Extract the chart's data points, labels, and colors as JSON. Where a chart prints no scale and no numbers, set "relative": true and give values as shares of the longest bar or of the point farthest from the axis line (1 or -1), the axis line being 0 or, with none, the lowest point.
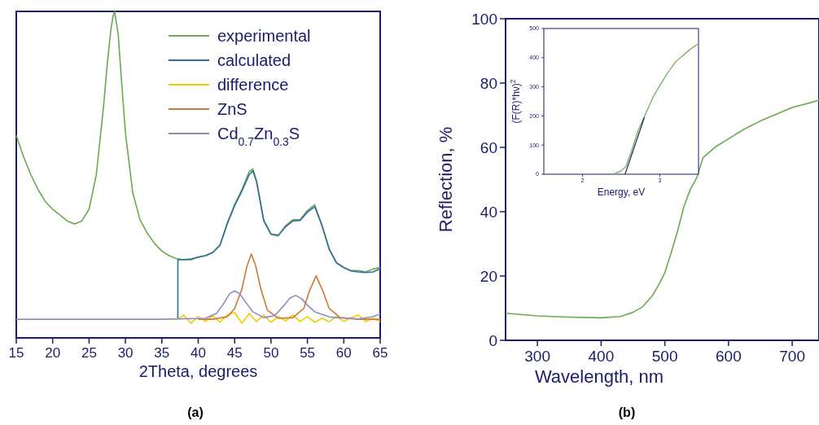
{
  "chart_data": [
    {
      "type": "line",
      "xlabel": "2Theta, degrees",
      "annotations": [
        "(a)"
      ],
      "relative": true,
      "xlim": [
        15,
        65
      ],
      "xticks": [
        15,
        20,
        25,
        30,
        35,
        40,
        45,
        50,
        55,
        60,
        65
      ],
      "legend": "top right",
      "grid": false,
      "series": [
        {
          "name": "experimental",
          "color": "#6aaa50",
          "x": [
            15,
            16,
            17,
            18,
            19,
            20,
            21,
            22,
            23,
            24,
            25,
            26,
            27,
            27.5,
            28,
            28.3,
            28.5,
            29,
            29.5,
            30,
            31,
            32,
            33,
            34,
            35,
            36,
            37,
            38,
            39,
            40,
            41,
            42,
            43,
            44,
            45,
            46,
            47,
            47.5,
            48,
            49,
            50,
            51,
            52,
            53,
            54,
            55,
            56,
            57,
            58,
            59,
            60,
            61,
            62,
            63,
            64,
            65
          ],
          "values": [
            0.62,
            0.555,
            0.5,
            0.454,
            0.417,
            0.394,
            0.376,
            0.358,
            0.349,
            0.358,
            0.394,
            0.5,
            0.711,
            0.839,
            0.945,
            0.986,
            1.0,
            0.931,
            0.775,
            0.628,
            0.445,
            0.362,
            0.321,
            0.289,
            0.266,
            0.252,
            0.243,
            0.239,
            0.239,
            0.248,
            0.252,
            0.261,
            0.284,
            0.353,
            0.408,
            0.454,
            0.509,
            0.518,
            0.482,
            0.358,
            0.317,
            0.312,
            0.344,
            0.362,
            0.362,
            0.39,
            0.408,
            0.344,
            0.271,
            0.229,
            0.216,
            0.206,
            0.206,
            0.202,
            0.211,
            0.216
          ]
        },
        {
          "name": "calculated",
          "color": "#2f6f9f",
          "x": [
            37.2,
            37.2,
            38,
            39,
            40,
            41,
            42,
            43,
            44,
            45,
            46,
            47,
            47.5,
            48,
            49,
            50,
            51,
            52,
            53,
            54,
            55,
            56,
            57,
            58,
            59,
            60,
            61,
            62,
            63,
            64,
            65
          ],
          "values": [
            0.057,
            0.239,
            0.24,
            0.242,
            0.247,
            0.252,
            0.262,
            0.285,
            0.35,
            0.405,
            0.45,
            0.5,
            0.512,
            0.48,
            0.36,
            0.318,
            0.315,
            0.34,
            0.358,
            0.36,
            0.385,
            0.402,
            0.345,
            0.272,
            0.23,
            0.215,
            0.205,
            0.202,
            0.2,
            0.202,
            0.212
          ]
        },
        {
          "name": "difference",
          "color": "#f5c800",
          "x": [
            37.2,
            38,
            39,
            40,
            41,
            42,
            43,
            44,
            45,
            46,
            47,
            48,
            49,
            50,
            51,
            52,
            53,
            54,
            55,
            56,
            57,
            58,
            59,
            60,
            61,
            62,
            63,
            64,
            65
          ],
          "values": [
            0.057,
            0.07,
            0.045,
            0.065,
            0.05,
            0.068,
            0.048,
            0.07,
            0.078,
            0.045,
            0.075,
            0.05,
            0.07,
            0.048,
            0.065,
            0.052,
            0.07,
            0.05,
            0.065,
            0.048,
            0.06,
            0.05,
            0.065,
            0.05,
            0.062,
            0.07,
            0.05,
            0.06,
            0.05
          ]
        },
        {
          "name": "ZnS",
          "color": "#d0783a",
          "x": [
            40,
            42,
            44,
            45,
            46,
            46.7,
            47.3,
            47.9,
            48.6,
            49.5,
            51,
            53,
            54.5,
            55.3,
            56.2,
            57.1,
            58,
            59.5,
            62,
            65
          ],
          "values": [
            0.057,
            0.057,
            0.065,
            0.09,
            0.15,
            0.22,
            0.257,
            0.22,
            0.15,
            0.085,
            0.06,
            0.062,
            0.09,
            0.145,
            0.19,
            0.145,
            0.09,
            0.062,
            0.057,
            0.057
          ]
        },
        {
          "name": "Cd$_{0.7}$Zn$_{0.3}$S",
          "color": "#8a8fc0",
          "x": [
            15,
            35,
            41,
            42.5,
            43.5,
            44.3,
            45,
            45.7,
            46.5,
            47.5,
            49,
            50.5,
            51.8,
            52.6,
            53.4,
            54.2,
            55,
            56,
            58,
            62,
            64,
            65
          ],
          "values": [
            0.057,
            0.057,
            0.06,
            0.075,
            0.105,
            0.135,
            0.144,
            0.135,
            0.11,
            0.08,
            0.062,
            0.068,
            0.1,
            0.122,
            0.13,
            0.12,
            0.1,
            0.08,
            0.064,
            0.058,
            0.065,
            0.073
          ]
        }
      ]
    },
    {
      "type": "line",
      "xlabel": "Wavelength, nm",
      "ylabel": "Reflection, %",
      "annotations": [
        "(b)"
      ],
      "xlim": [
        250,
        742
      ],
      "ylim": [
        0,
        100
      ],
      "xticks": [
        300,
        400,
        500,
        600,
        700
      ],
      "yticks": [
        0,
        20,
        40,
        60,
        80,
        100
      ],
      "grid": false,
      "series": [
        {
          "color": "#6aaa50",
          "x": [
            250,
            300,
            350,
            400,
            430,
            450,
            465,
            480,
            490,
            500,
            510,
            520,
            530,
            540,
            550,
            560,
            580,
            600,
            625,
            650,
            675,
            700,
            725,
            742
          ],
          "values": [
            8.4,
            7.6,
            7.2,
            7.0,
            7.4,
            8.7,
            10.4,
            13.8,
            17.1,
            21,
            27.3,
            34,
            41.6,
            47,
            50.5,
            56.8,
            60.2,
            62.7,
            65.7,
            68.2,
            70.3,
            72.4,
            73.7,
            74.7
          ]
        }
      ]
    },
    {
      "type": "line",
      "xlabel": "Energy, eV",
      "ylabel": "(F(R)*hν)$^{2}$",
      "xlim": [
        1.5,
        3.5
      ],
      "ylim": [
        0,
        500
      ],
      "xticks": [
        2,
        3
      ],
      "yticks": [
        0,
        100,
        200,
        300,
        400,
        500
      ],
      "grid": false,
      "series": [
        {
          "color": "#6aaa50",
          "x": [
            2.42,
            2.49,
            2.56,
            2.63,
            2.72,
            2.8,
            2.91,
            3.0,
            3.1,
            3.21,
            3.3,
            3.38,
            3.49
          ],
          "values": [
            4,
            10,
            26,
            77,
            151,
            198,
            263,
            305,
            347,
            388,
            407,
            426,
            446
          ]
        },
        {
          "color": "#1a2a5a",
          "x": [
            2.55,
            2.8
          ],
          "values": [
            0,
            195
          ]
        }
      ]
    }
  ]
}
